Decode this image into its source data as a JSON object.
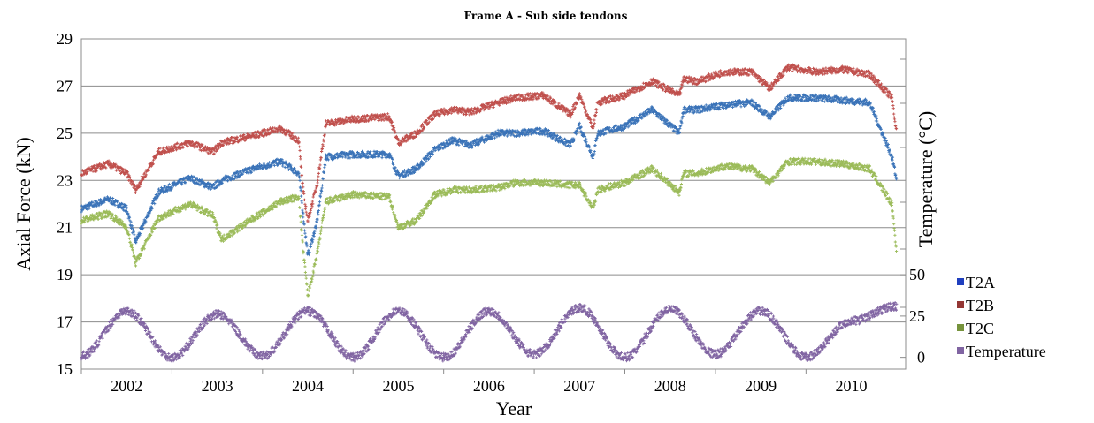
{
  "chart_data": {
    "type": "scatter",
    "title": "Frame A - Sub side tendons",
    "xlabel": "Year",
    "ylabel": "Axial Force  (kN)",
    "ylabel_right": "Temperature (°C)",
    "x_categories": [
      "2002",
      "2003",
      "2004",
      "2005",
      "2006",
      "2007",
      "2008",
      "2009",
      "2010"
    ],
    "xlim": [
      2001.5,
      2010.6
    ],
    "ylim": [
      15,
      29
    ],
    "yticks": [
      "15",
      "17",
      "19",
      "21",
      "23",
      "25",
      "27",
      "29"
    ],
    "yticks_right": [
      "0",
      "25",
      "50"
    ],
    "grid": true,
    "legend_position": "right",
    "series": [
      {
        "name": "T2A",
        "color": "#1f3fbf",
        "points_color": "#3a73b8",
        "x": [
          2001.5,
          2001.8,
          2002.0,
          2002.1,
          2002.35,
          2002.7,
          2002.95,
          2003.05,
          2003.4,
          2003.7,
          2003.9,
          2003.95,
          2004.0,
          2004.1,
          2004.2,
          2004.5,
          2004.9,
          2005.0,
          2005.2,
          2005.4,
          2005.6,
          2005.8,
          2006.1,
          2006.3,
          2006.6,
          2006.9,
          2007.0,
          2007.15,
          2007.2,
          2007.5,
          2007.8,
          2008.1,
          2008.15,
          2008.3,
          2008.6,
          2008.9,
          2009.1,
          2009.3,
          2009.6,
          2009.9,
          2010.2,
          2010.45,
          2010.5
        ],
        "y": [
          21.8,
          22.2,
          21.8,
          20.4,
          22.5,
          23.1,
          22.7,
          23.0,
          23.5,
          23.8,
          23.3,
          21.5,
          19.8,
          21.2,
          24.0,
          24.1,
          24.1,
          23.2,
          23.5,
          24.3,
          24.7,
          24.5,
          25.0,
          25.0,
          25.1,
          24.5,
          25.3,
          24.0,
          25.0,
          25.3,
          26.0,
          25.0,
          26.0,
          26.0,
          26.2,
          26.3,
          25.7,
          26.5,
          26.5,
          26.4,
          26.3,
          24.0,
          23.0
        ]
      },
      {
        "name": "T2B",
        "color": "#943634",
        "points_color": "#c0504d",
        "x": [
          2001.5,
          2001.8,
          2002.0,
          2002.1,
          2002.35,
          2002.7,
          2002.95,
          2003.05,
          2003.4,
          2003.7,
          2003.9,
          2003.95,
          2004.0,
          2004.1,
          2004.2,
          2004.5,
          2004.9,
          2005.0,
          2005.2,
          2005.4,
          2005.6,
          2005.8,
          2006.1,
          2006.3,
          2006.6,
          2006.9,
          2007.0,
          2007.15,
          2007.2,
          2007.5,
          2007.8,
          2008.1,
          2008.15,
          2008.3,
          2008.6,
          2008.9,
          2009.1,
          2009.3,
          2009.6,
          2009.9,
          2010.2,
          2010.45,
          2010.5
        ],
        "y": [
          23.3,
          23.7,
          23.3,
          22.6,
          24.2,
          24.6,
          24.2,
          24.6,
          24.9,
          25.2,
          24.7,
          22.5,
          21.3,
          22.8,
          25.4,
          25.6,
          25.7,
          24.6,
          25.0,
          25.8,
          26.0,
          25.9,
          26.3,
          26.5,
          26.6,
          25.8,
          26.6,
          25.2,
          26.3,
          26.6,
          27.2,
          26.6,
          27.3,
          27.2,
          27.6,
          27.6,
          26.9,
          27.8,
          27.6,
          27.7,
          27.5,
          26.5,
          25.0
        ]
      },
      {
        "name": "T2C",
        "color": "#76933c",
        "points_color": "#9bbb59",
        "x": [
          2001.5,
          2001.8,
          2002.0,
          2002.1,
          2002.35,
          2002.7,
          2002.95,
          2003.05,
          2003.4,
          2003.7,
          2003.9,
          2003.95,
          2004.0,
          2004.1,
          2004.2,
          2004.5,
          2004.9,
          2005.0,
          2005.2,
          2005.4,
          2005.6,
          2005.8,
          2006.1,
          2006.3,
          2006.6,
          2006.9,
          2007.0,
          2007.15,
          2007.2,
          2007.5,
          2007.8,
          2008.1,
          2008.15,
          2008.3,
          2008.6,
          2008.9,
          2009.1,
          2009.3,
          2009.6,
          2009.9,
          2010.2,
          2010.45,
          2010.5
        ],
        "y": [
          21.3,
          21.6,
          21.0,
          19.5,
          21.4,
          22.0,
          21.5,
          20.5,
          21.4,
          22.1,
          22.3,
          20.0,
          18.1,
          19.8,
          22.1,
          22.4,
          22.3,
          21.0,
          21.3,
          22.4,
          22.6,
          22.6,
          22.7,
          22.9,
          22.9,
          22.8,
          22.8,
          21.8,
          22.6,
          22.9,
          23.5,
          22.5,
          23.3,
          23.3,
          23.6,
          23.5,
          22.9,
          23.8,
          23.8,
          23.7,
          23.5,
          22.0,
          19.9
        ]
      },
      {
        "name": "Temperature",
        "color": "#8064a2",
        "points_color": "#8064a2",
        "x": [
          2001.5,
          2002.0,
          2002.5,
          2003.0,
          2003.5,
          2004.0,
          2004.5,
          2005.0,
          2005.5,
          2006.0,
          2006.5,
          2007.0,
          2007.5,
          2008.0,
          2008.5,
          2009.0,
          2009.5,
          2010.0,
          2010.5
        ],
        "y": [
          1,
          28,
          0,
          26,
          1,
          28,
          0,
          28,
          0,
          28,
          2,
          30,
          0,
          29,
          2,
          28,
          0,
          22,
          31
        ]
      }
    ]
  }
}
